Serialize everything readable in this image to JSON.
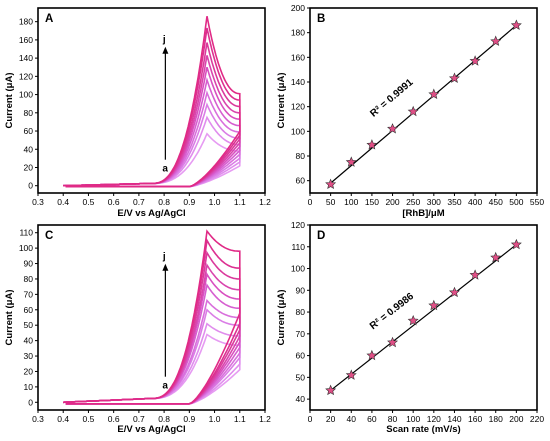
{
  "chart_data": [
    {
      "id": "A",
      "type": "line",
      "panel_label": "A",
      "title": "",
      "xlabel": "E/V vs Ag/AgCl",
      "ylabel": "Current (μA)",
      "xlim": [
        0.3,
        1.2
      ],
      "ylim": [
        -8,
        195
      ],
      "xticks": [
        "0.3",
        "0.4",
        "0.5",
        "0.6",
        "0.7",
        "0.8",
        "0.9",
        "1.0",
        "1.1",
        "1.2"
      ],
      "yticks": [
        "0",
        "20",
        "40",
        "60",
        "80",
        "100",
        "120",
        "140",
        "160",
        "180"
      ],
      "annotations": {
        "start": "a",
        "end": "j"
      },
      "peak_potential": 0.97,
      "series": [
        {
          "label_index": "a",
          "peak": 57,
          "end": 38
        },
        {
          "label_index": "b",
          "peak": 75,
          "end": 45
        },
        {
          "label_index": "c",
          "peak": 89,
          "end": 52
        },
        {
          "label_index": "d",
          "peak": 102,
          "end": 59
        },
        {
          "label_index": "e",
          "peak": 116,
          "end": 66
        },
        {
          "label_index": "f",
          "peak": 130,
          "end": 73
        },
        {
          "label_index": "g",
          "peak": 143,
          "end": 80
        },
        {
          "label_index": "h",
          "peak": 157,
          "end": 87
        },
        {
          "label_index": "i",
          "peak": 173,
          "end": 94
        },
        {
          "label_index": "j",
          "peak": 186,
          "end": 101
        }
      ],
      "colors": [
        "#e69bf2",
        "#e08ded",
        "#da7ee6",
        "#d96fdc",
        "#d65fd0",
        "#d850c0",
        "#d945ad",
        "#da3a9c",
        "#dc3090",
        "#e02a86"
      ]
    },
    {
      "id": "B",
      "type": "scatter",
      "panel_label": "B",
      "title": "",
      "xlabel": "[RhB]/μM",
      "ylabel": "Current (μA)",
      "xlim": [
        0,
        550
      ],
      "ylim": [
        50,
        200
      ],
      "xticks": [
        "0",
        "50",
        "100",
        "150",
        "200",
        "250",
        "300",
        "350",
        "400",
        "450",
        "500",
        "550"
      ],
      "yticks": [
        "60",
        "80",
        "100",
        "120",
        "140",
        "160",
        "180",
        "200"
      ],
      "annotation": "R² = 0.9991",
      "x": [
        50,
        100,
        150,
        200,
        250,
        300,
        350,
        400,
        450,
        500
      ],
      "y": [
        57,
        75,
        89,
        102,
        116,
        130,
        143,
        157,
        173,
        186
      ],
      "fit": {
        "x": [
          50,
          500
        ],
        "y": [
          58,
          186
        ]
      },
      "marker_color": "#e04f86"
    },
    {
      "id": "C",
      "type": "line",
      "panel_label": "C",
      "title": "",
      "xlabel": "E/V vs Ag/AgCl",
      "ylabel": "Current (μA)",
      "xlim": [
        0.3,
        1.2
      ],
      "ylim": [
        -5,
        115
      ],
      "xticks": [
        "0.3",
        "0.4",
        "0.5",
        "0.6",
        "0.7",
        "0.8",
        "0.9",
        "1.0",
        "1.1",
        "1.2"
      ],
      "yticks": [
        "0",
        "10",
        "20",
        "30",
        "40",
        "50",
        "60",
        "70",
        "80",
        "90",
        "100",
        "110"
      ],
      "annotations": {
        "start": "a",
        "end": "j"
      },
      "peak_potential": 0.97,
      "series": [
        {
          "label_index": "a",
          "peak": 44,
          "end": 37
        },
        {
          "label_index": "b",
          "peak": 51,
          "end": 43
        },
        {
          "label_index": "c",
          "peak": 60,
          "end": 50
        },
        {
          "label_index": "d",
          "peak": 66,
          "end": 55
        },
        {
          "label_index": "e",
          "peak": 76,
          "end": 61
        },
        {
          "label_index": "f",
          "peak": 83,
          "end": 67
        },
        {
          "label_index": "g",
          "peak": 89,
          "end": 73
        },
        {
          "label_index": "h",
          "peak": 97,
          "end": 80
        },
        {
          "label_index": "i",
          "peak": 105,
          "end": 87
        },
        {
          "label_index": "j",
          "peak": 111,
          "end": 98
        }
      ],
      "colors": [
        "#e69bf2",
        "#e08ded",
        "#da7ee6",
        "#d96fdc",
        "#d65fd0",
        "#d850c0",
        "#d945ad",
        "#da3a9c",
        "#dc3090",
        "#e02a86"
      ]
    },
    {
      "id": "D",
      "type": "scatter",
      "panel_label": "D",
      "title": "",
      "xlabel": "Scan rate (mV/s)",
      "ylabel": "Current (μA)",
      "xlim": [
        0,
        220
      ],
      "ylim": [
        35,
        120
      ],
      "xticks": [
        "0",
        "20",
        "40",
        "60",
        "80",
        "100",
        "120",
        "140",
        "160",
        "180",
        "200",
        "220"
      ],
      "yticks": [
        "40",
        "50",
        "60",
        "70",
        "80",
        "90",
        "100",
        "110",
        "120"
      ],
      "annotation": "R² = 0.9986",
      "x": [
        20,
        40,
        60,
        80,
        100,
        120,
        140,
        160,
        180,
        200
      ],
      "y": [
        44,
        51,
        60,
        66,
        76,
        83,
        89,
        97,
        105,
        111
      ],
      "fit": {
        "x": [
          20,
          200
        ],
        "y": [
          44,
          111
        ]
      },
      "marker_color": "#e04f86"
    }
  ]
}
